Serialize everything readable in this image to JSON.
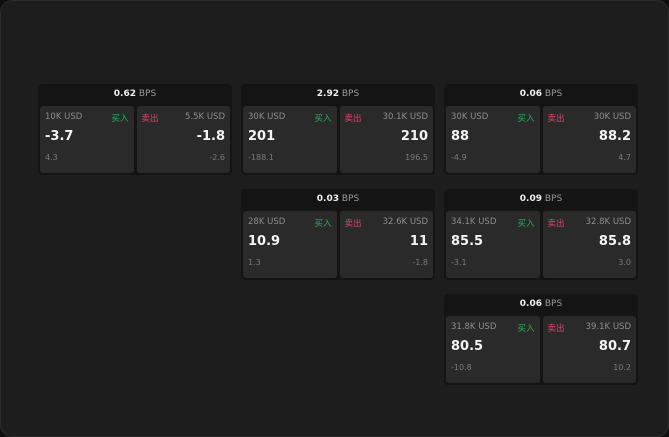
{
  "unit": "BPS",
  "widgets": [
    {
      "spread": "0.62",
      "bid": {
        "size": "10K USD",
        "label": "买入",
        "price": "-3.7",
        "change": "4.3"
      },
      "ask": {
        "size": "5.5K USD",
        "label": "卖出",
        "price": "-1.8",
        "change": "-2.6"
      }
    },
    {
      "spread": "2.92",
      "bid": {
        "size": "30K USD",
        "label": "买入",
        "price": "201",
        "change": "-188.1"
      },
      "ask": {
        "size": "30.1K USD",
        "label": "卖出",
        "price": "210",
        "change": "196.5"
      }
    },
    {
      "spread": "0.06",
      "bid": {
        "size": "30K USD",
        "label": "买入",
        "price": "88",
        "change": "-4.9"
      },
      "ask": {
        "size": "30K USD",
        "label": "卖出",
        "price": "88.2",
        "change": "4.7"
      }
    },
    {
      "spread": "0.03",
      "bid": {
        "size": "28K USD",
        "label": "买入",
        "price": "10.9",
        "change": "1.3"
      },
      "ask": {
        "size": "32.6K USD",
        "label": "卖出",
        "price": "11",
        "change": "-1.8"
      }
    },
    {
      "spread": "0.09",
      "bid": {
        "size": "34.1K USD",
        "label": "买入",
        "price": "85.5",
        "change": "-3.1"
      },
      "ask": {
        "size": "32.8K USD",
        "label": "卖出",
        "price": "85.8",
        "change": "3.0"
      }
    },
    {
      "spread": "0.06",
      "bid": {
        "size": "31.8K USD",
        "label": "买入",
        "price": "80.5",
        "change": "-10.8"
      },
      "ask": {
        "size": "39.1K USD",
        "label": "卖出",
        "price": "80.7",
        "change": "10.2"
      }
    }
  ],
  "colors": {
    "buy": "#2fae5b",
    "sell": "#e0446c"
  }
}
